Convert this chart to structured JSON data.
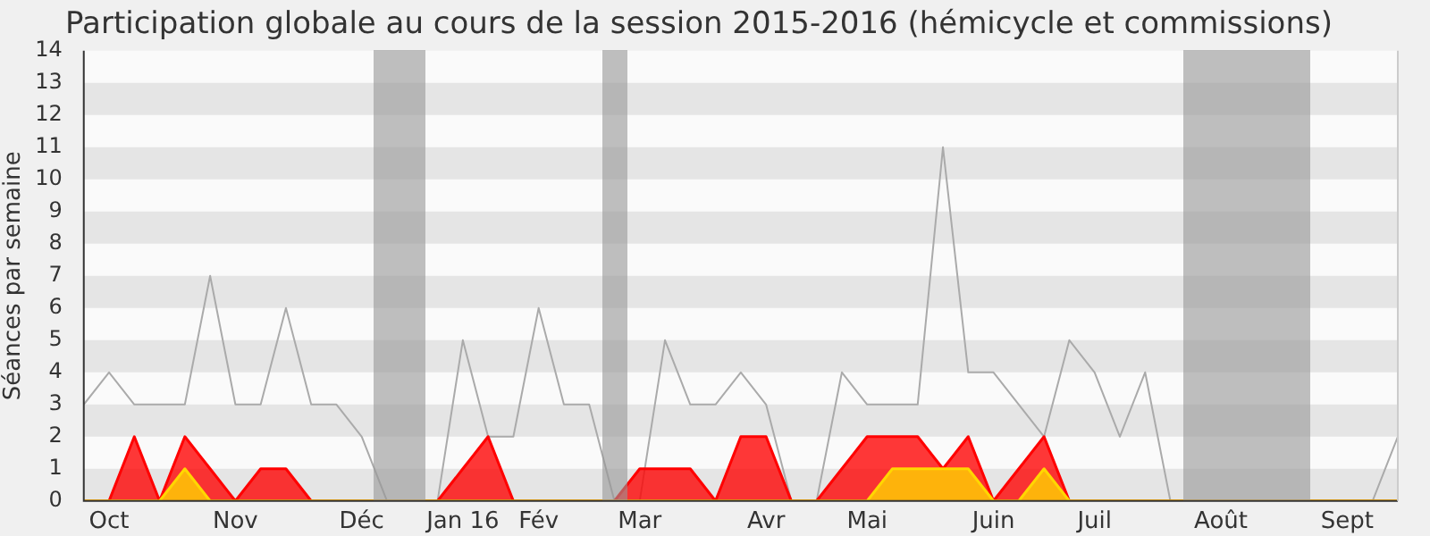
{
  "chart_data": {
    "type": "line",
    "title": "Participation globale au cours de la session 2015-2016 (hémicycle et commissions)",
    "ylabel": "Séances par semaine",
    "categories": [
      null,
      "Oct",
      null,
      null,
      null,
      null,
      "Nov",
      null,
      null,
      null,
      null,
      "Déc",
      null,
      null,
      null,
      "Jan 16",
      null,
      null,
      "Fév",
      null,
      null,
      null,
      "Mar",
      null,
      null,
      null,
      null,
      "Avr",
      null,
      null,
      null,
      "Mai",
      null,
      null,
      null,
      null,
      "Juin",
      null,
      null,
      null,
      "Juil",
      null,
      null,
      null,
      null,
      "Août",
      null,
      null,
      null,
      null,
      "Sept",
      null,
      null
    ],
    "ylim": [
      0,
      14
    ],
    "yticks": [
      0,
      1,
      2,
      3,
      4,
      5,
      6,
      7,
      8,
      9,
      10,
      11,
      12,
      13,
      14
    ],
    "legend": false,
    "marker": "none",
    "series": [
      {
        "type": "line",
        "color": "#aaaaaa",
        "values": [
          3,
          4,
          3,
          3,
          3,
          7,
          3,
          3,
          6,
          3,
          3,
          2,
          0,
          0,
          0,
          5,
          2,
          2,
          6,
          3,
          3,
          0,
          0,
          5,
          3,
          3,
          4,
          3,
          0,
          0,
          4,
          3,
          3,
          3,
          11,
          4,
          4,
          3,
          2,
          5,
          4,
          2,
          4,
          0,
          0,
          0,
          0,
          0,
          0,
          0,
          0,
          0,
          2
        ]
      },
      {
        "type": "area",
        "color": "#ff0000",
        "values": [
          0,
          0,
          2,
          0,
          2,
          1,
          0,
          1,
          1,
          0,
          0,
          0,
          0,
          0,
          0,
          1,
          2,
          0,
          0,
          0,
          0,
          0,
          1,
          1,
          1,
          0,
          2,
          2,
          0,
          0,
          1,
          2,
          2,
          2,
          1,
          2,
          0,
          1,
          2,
          0,
          0,
          0,
          0,
          0,
          0,
          0,
          0,
          0,
          0,
          0,
          0,
          0,
          0
        ]
      },
      {
        "type": "area",
        "color": "#ffd700",
        "values": [
          0,
          0,
          0,
          0,
          1,
          0,
          0,
          0,
          0,
          0,
          0,
          0,
          0,
          0,
          0,
          0,
          0,
          0,
          0,
          0,
          0,
          0,
          0,
          0,
          0,
          0,
          0,
          0,
          0,
          0,
          0,
          0,
          1,
          1,
          1,
          1,
          0,
          0,
          1,
          0,
          0,
          0,
          0,
          0,
          0,
          0,
          0,
          0,
          0,
          0,
          0,
          0,
          0
        ]
      }
    ]
  }
}
